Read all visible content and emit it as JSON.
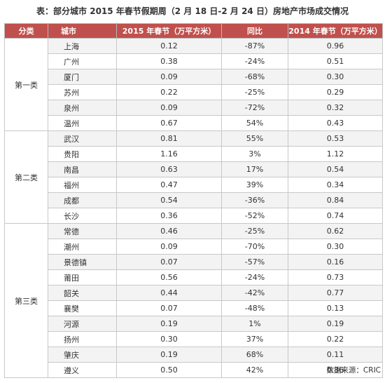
{
  "title": "表：部分城市 2015 年春节假期周（2 月 18 日-2 月 24 日）房地产市场成交情况",
  "table": {
    "headers": [
      "分类",
      "城市",
      "2015 年春节（万平方米）",
      "同比",
      "2014 年春节（万平方米）"
    ],
    "groups": [
      {
        "category": "第一类",
        "rows": [
          {
            "city": "上海",
            "v2015": "0.12",
            "yoy": "-87%",
            "v2014": "0.96"
          },
          {
            "city": "广州",
            "v2015": "0.38",
            "yoy": "-24%",
            "v2014": "0.51"
          },
          {
            "city": "厦门",
            "v2015": "0.09",
            "yoy": "-68%",
            "v2014": "0.30"
          },
          {
            "city": "苏州",
            "v2015": "0.22",
            "yoy": "-25%",
            "v2014": "0.29"
          },
          {
            "city": "泉州",
            "v2015": "0.09",
            "yoy": "-72%",
            "v2014": "0.32"
          },
          {
            "city": "温州",
            "v2015": "0.67",
            "yoy": "54%",
            "v2014": "0.43"
          }
        ]
      },
      {
        "category": "第二类",
        "rows": [
          {
            "city": "武汉",
            "v2015": "0.81",
            "yoy": "55%",
            "v2014": "0.53"
          },
          {
            "city": "贵阳",
            "v2015": "1.16",
            "yoy": "3%",
            "v2014": "1.12"
          },
          {
            "city": "南昌",
            "v2015": "0.63",
            "yoy": "17%",
            "v2014": "0.54"
          },
          {
            "city": "福州",
            "v2015": "0.47",
            "yoy": "39%",
            "v2014": "0.34"
          },
          {
            "city": "成都",
            "v2015": "0.54",
            "yoy": "-36%",
            "v2014": "0.84"
          },
          {
            "city": "长沙",
            "v2015": "0.36",
            "yoy": "-52%",
            "v2014": "0.74"
          }
        ]
      },
      {
        "category": "第三类",
        "rows": [
          {
            "city": "常德",
            "v2015": "0.46",
            "yoy": "-25%",
            "v2014": "0.62"
          },
          {
            "city": "潮州",
            "v2015": "0.09",
            "yoy": "-70%",
            "v2014": "0.30"
          },
          {
            "city": "景德镇",
            "v2015": "0.07",
            "yoy": "-57%",
            "v2014": "0.16"
          },
          {
            "city": "莆田",
            "v2015": "0.56",
            "yoy": "-24%",
            "v2014": "0.73"
          },
          {
            "city": "韶关",
            "v2015": "0.44",
            "yoy": "-42%",
            "v2014": "0.77"
          },
          {
            "city": "襄樊",
            "v2015": "0.07",
            "yoy": "-48%",
            "v2014": "0.13"
          },
          {
            "city": "河源",
            "v2015": "0.19",
            "yoy": "1%",
            "v2014": "0.19"
          },
          {
            "city": "扬州",
            "v2015": "0.30",
            "yoy": "37%",
            "v2014": "0.22"
          },
          {
            "city": "肇庆",
            "v2015": "0.19",
            "yoy": "68%",
            "v2014": "0.11"
          },
          {
            "city": "遵义",
            "v2015": "0.50",
            "yoy": "42%",
            "v2014": "0.36"
          }
        ]
      }
    ]
  },
  "source": "数据来源：CRIC",
  "colors": {
    "header_bg": "#c0504d",
    "header_text": "#ffffff",
    "zebra": "#f3f3f3"
  }
}
